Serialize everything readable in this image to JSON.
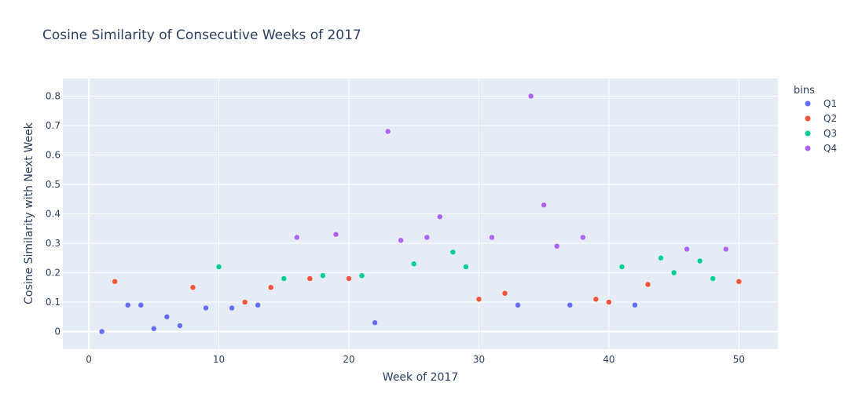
{
  "chart_data": {
    "type": "scatter",
    "title": "Cosine Similarity of Consecutive Weeks of 2017",
    "xlabel": "Week of 2017",
    "ylabel": "Cosine Similarity with Next Week",
    "xlim": [
      -2,
      53
    ],
    "ylim": [
      -0.06,
      0.86
    ],
    "x_ticks": [
      0,
      10,
      20,
      30,
      40,
      50
    ],
    "y_ticks": [
      0,
      0.1,
      0.2,
      0.3,
      0.4,
      0.5,
      0.6,
      0.7,
      0.8
    ],
    "x_tick_labels": [
      "0",
      "10",
      "20",
      "30",
      "40",
      "50"
    ],
    "y_tick_labels": [
      "0",
      "0.1",
      "0.2",
      "0.3",
      "0.4",
      "0.5",
      "0.6",
      "0.7",
      "0.8"
    ],
    "grid": true,
    "legend_title": "bins",
    "legend_position": "right",
    "series": [
      {
        "name": "Q1",
        "color": "#636efa",
        "x": [
          1,
          3,
          4,
          5,
          6,
          7,
          9,
          11,
          13,
          22,
          33,
          37,
          42
        ],
        "y": [
          0.0,
          0.09,
          0.09,
          0.01,
          0.05,
          0.02,
          0.08,
          0.08,
          0.09,
          0.03,
          0.09,
          0.09,
          0.09
        ]
      },
      {
        "name": "Q2",
        "color": "#ef553b",
        "x": [
          2,
          8,
          12,
          14,
          17,
          20,
          30,
          32,
          39,
          40,
          43,
          50
        ],
        "y": [
          0.17,
          0.15,
          0.1,
          0.15,
          0.18,
          0.18,
          0.11,
          0.13,
          0.11,
          0.1,
          0.16,
          0.17
        ]
      },
      {
        "name": "Q3",
        "color": "#00cc96",
        "x": [
          10,
          15,
          18,
          21,
          25,
          28,
          29,
          41,
          44,
          45,
          47,
          48
        ],
        "y": [
          0.22,
          0.18,
          0.19,
          0.19,
          0.23,
          0.27,
          0.22,
          0.22,
          0.25,
          0.2,
          0.24,
          0.18
        ]
      },
      {
        "name": "Q4",
        "color": "#ab63fa",
        "x": [
          16,
          19,
          23,
          24,
          26,
          27,
          31,
          34,
          35,
          36,
          38,
          46,
          49
        ],
        "y": [
          0.32,
          0.33,
          0.68,
          0.31,
          0.32,
          0.39,
          0.32,
          0.8,
          0.43,
          0.29,
          0.32,
          0.28,
          0.28
        ]
      }
    ]
  }
}
